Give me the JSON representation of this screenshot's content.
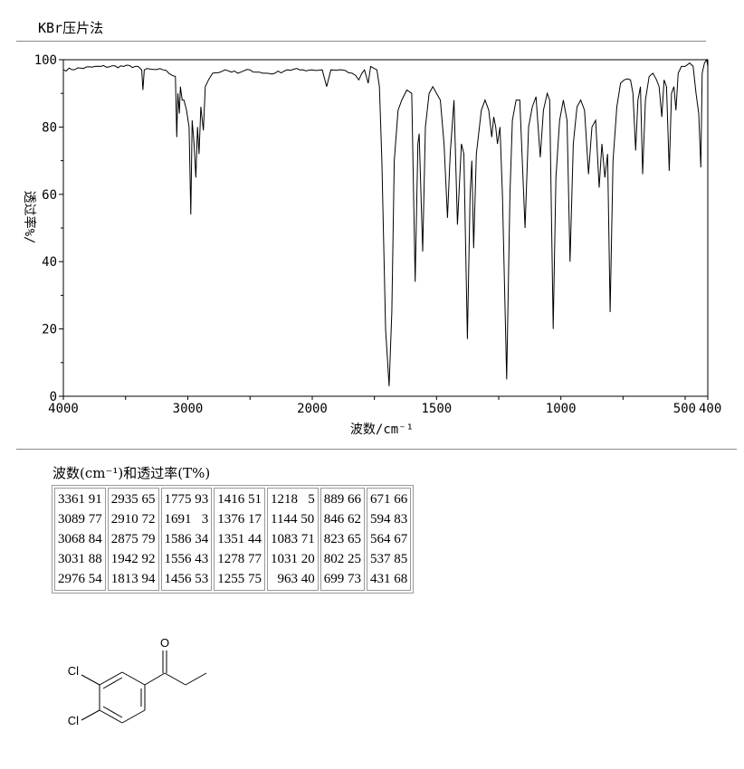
{
  "header": {
    "method": "KBr压片法"
  },
  "chart_data": {
    "type": "line",
    "xlabel": "波数/cm⁻¹",
    "ylabel": "透过率%/",
    "xlim": [
      4000,
      400
    ],
    "ylim": [
      0,
      100
    ],
    "x_ticks": [
      "4000",
      "3000",
      "2000",
      "1500",
      "1000",
      "500",
      "400"
    ],
    "y_ticks": [
      "0",
      "20",
      "40",
      "60",
      "80",
      "100"
    ],
    "grid": false,
    "series": [
      {
        "points": [
          [
            4000,
            97
          ],
          [
            3700,
            98
          ],
          [
            3400,
            98
          ],
          [
            3370,
            97
          ],
          [
            3361,
            91
          ],
          [
            3350,
            97
          ],
          [
            3200,
            97
          ],
          [
            3100,
            95
          ],
          [
            3089,
            77
          ],
          [
            3080,
            90
          ],
          [
            3068,
            84
          ],
          [
            3060,
            92
          ],
          [
            3045,
            88
          ],
          [
            3031,
            88
          ],
          [
            3010,
            85
          ],
          [
            2990,
            80
          ],
          [
            2976,
            54
          ],
          [
            2965,
            82
          ],
          [
            2950,
            75
          ],
          [
            2935,
            65
          ],
          [
            2922,
            80
          ],
          [
            2910,
            72
          ],
          [
            2895,
            86
          ],
          [
            2875,
            79
          ],
          [
            2860,
            92
          ],
          [
            2800,
            96
          ],
          [
            2700,
            97
          ],
          [
            2600,
            96
          ],
          [
            2500,
            97
          ],
          [
            2400,
            96
          ],
          [
            2300,
            96
          ],
          [
            2200,
            97
          ],
          [
            2100,
            97
          ],
          [
            2000,
            97
          ],
          [
            1960,
            97
          ],
          [
            1942,
            92
          ],
          [
            1925,
            97
          ],
          [
            1880,
            97
          ],
          [
            1840,
            96
          ],
          [
            1813,
            94
          ],
          [
            1800,
            96
          ],
          [
            1790,
            97
          ],
          [
            1775,
            93
          ],
          [
            1765,
            98
          ],
          [
            1740,
            97
          ],
          [
            1730,
            92
          ],
          [
            1720,
            70
          ],
          [
            1705,
            20
          ],
          [
            1691,
            3
          ],
          [
            1680,
            25
          ],
          [
            1670,
            70
          ],
          [
            1655,
            85
          ],
          [
            1640,
            88
          ],
          [
            1620,
            91
          ],
          [
            1600,
            90
          ],
          [
            1586,
            34
          ],
          [
            1575,
            75
          ],
          [
            1570,
            78
          ],
          [
            1556,
            43
          ],
          [
            1545,
            80
          ],
          [
            1530,
            90
          ],
          [
            1515,
            92
          ],
          [
            1500,
            90
          ],
          [
            1485,
            88
          ],
          [
            1470,
            75
          ],
          [
            1456,
            53
          ],
          [
            1445,
            72
          ],
          [
            1430,
            88
          ],
          [
            1416,
            51
          ],
          [
            1400,
            75
          ],
          [
            1390,
            72
          ],
          [
            1376,
            17
          ],
          [
            1365,
            60
          ],
          [
            1358,
            70
          ],
          [
            1351,
            44
          ],
          [
            1340,
            72
          ],
          [
            1320,
            85
          ],
          [
            1305,
            88
          ],
          [
            1290,
            85
          ],
          [
            1278,
            77
          ],
          [
            1270,
            83
          ],
          [
            1262,
            80
          ],
          [
            1255,
            75
          ],
          [
            1245,
            80
          ],
          [
            1235,
            60
          ],
          [
            1218,
            5
          ],
          [
            1205,
            60
          ],
          [
            1195,
            82
          ],
          [
            1180,
            88
          ],
          [
            1165,
            88
          ],
          [
            1144,
            50
          ],
          [
            1130,
            80
          ],
          [
            1115,
            86
          ],
          [
            1100,
            89
          ],
          [
            1083,
            71
          ],
          [
            1070,
            85
          ],
          [
            1055,
            90
          ],
          [
            1045,
            88
          ],
          [
            1031,
            20
          ],
          [
            1020,
            65
          ],
          [
            1005,
            82
          ],
          [
            990,
            88
          ],
          [
            975,
            82
          ],
          [
            963,
            40
          ],
          [
            950,
            75
          ],
          [
            935,
            86
          ],
          [
            920,
            88
          ],
          [
            905,
            85
          ],
          [
            889,
            66
          ],
          [
            875,
            80
          ],
          [
            860,
            82
          ],
          [
            846,
            62
          ],
          [
            835,
            75
          ],
          [
            823,
            65
          ],
          [
            812,
            72
          ],
          [
            802,
            25
          ],
          [
            790,
            70
          ],
          [
            775,
            86
          ],
          [
            760,
            93
          ],
          [
            745,
            94
          ],
          [
            720,
            94
          ],
          [
            710,
            90
          ],
          [
            699,
            73
          ],
          [
            690,
            88
          ],
          [
            680,
            92
          ],
          [
            671,
            66
          ],
          [
            660,
            88
          ],
          [
            645,
            95
          ],
          [
            630,
            96
          ],
          [
            615,
            94
          ],
          [
            605,
            92
          ],
          [
            594,
            83
          ],
          [
            585,
            94
          ],
          [
            575,
            92
          ],
          [
            564,
            67
          ],
          [
            555,
            90
          ],
          [
            545,
            92
          ],
          [
            537,
            85
          ],
          [
            528,
            96
          ],
          [
            515,
            98
          ],
          [
            500,
            98
          ],
          [
            480,
            99
          ],
          [
            465,
            98
          ],
          [
            452,
            90
          ],
          [
            440,
            84
          ],
          [
            431,
            68
          ],
          [
            425,
            96
          ],
          [
            415,
            99
          ],
          [
            405,
            100
          ],
          [
            400,
            98
          ]
        ]
      }
    ]
  },
  "peaks": {
    "title": "波数(cm⁻¹)和透过率(T%)",
    "columns": [
      [
        "3361 91",
        "3089 77",
        "3068 84",
        "3031 88",
        "2976 54"
      ],
      [
        "2935 65",
        "2910 72",
        "2875 79",
        "1942 92",
        "1813 94"
      ],
      [
        "1775 93",
        "1691   3",
        "1586 34",
        "1556 43",
        "1456 53"
      ],
      [
        "1416 51",
        "1376 17",
        "1351 44",
        "1278 77",
        "1255 75"
      ],
      [
        "1218   5",
        "1144 50",
        "1083 71",
        "1031 20",
        "  963 40"
      ],
      [
        "889 66",
        "846 62",
        "823 65",
        "802 25",
        "699 73"
      ],
      [
        "671 66",
        "594 83",
        "564 67",
        "537 85",
        "431 68"
      ]
    ]
  },
  "structure": {
    "atom_labels": [
      "O",
      "Cl",
      "Cl"
    ]
  }
}
